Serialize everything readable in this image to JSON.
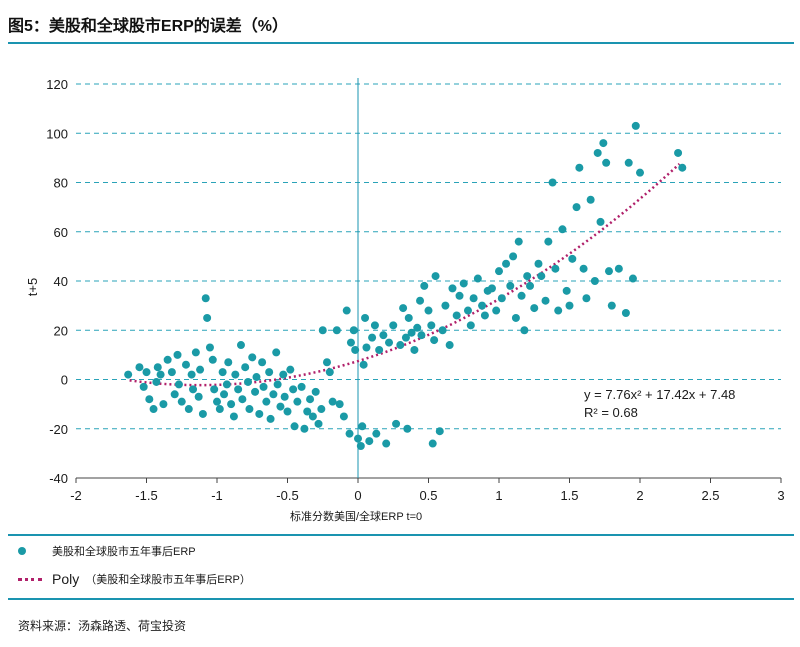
{
  "title": "图5：美股和全球股市ERP的误差（%）",
  "colors": {
    "accent": "#1a94b0",
    "points": "#1a9aa6",
    "trend": "#b0206a",
    "grid": "#2aa3b8"
  },
  "legend": {
    "scatter_label": "美股和全球股市五年事后ERP",
    "poly_prefix": "Poly",
    "poly_label": "（美股和全球股市五年事后ERP）"
  },
  "source": "资料来源：汤森路透、荷宝投资",
  "chart_data": {
    "type": "scatter",
    "xlabel": "标准分数美国/全球ERP t=0",
    "ylabel": "t+5",
    "xlim": [
      -2,
      3
    ],
    "ylim": [
      -40,
      120
    ],
    "xticks": [
      "-2",
      "-1.5",
      "-1",
      "-0.5",
      "0",
      "0.5",
      "1",
      "1.5",
      "2",
      "2.5",
      "3"
    ],
    "yticks": [
      "-40",
      "-20",
      "0",
      "20",
      "40",
      "60",
      "80",
      "100",
      "120"
    ],
    "equation": "y = 7.76x² + 17.42x + 7.48",
    "r_squared": "R² = 0.68",
    "trendline": {
      "a": 7.76,
      "b": 17.42,
      "c": 7.48,
      "xmin": -1.62,
      "xmax": 2.28
    },
    "points": [
      [
        -1.63,
        2
      ],
      [
        -1.55,
        5
      ],
      [
        -1.52,
        -3
      ],
      [
        -1.5,
        3
      ],
      [
        -1.48,
        -8
      ],
      [
        -1.45,
        -12
      ],
      [
        -1.43,
        -1
      ],
      [
        -1.42,
        5
      ],
      [
        -1.4,
        2
      ],
      [
        -1.38,
        -10
      ],
      [
        -1.35,
        8
      ],
      [
        -1.32,
        3
      ],
      [
        -1.3,
        -6
      ],
      [
        -1.28,
        10
      ],
      [
        -1.27,
        -2
      ],
      [
        -1.25,
        -9
      ],
      [
        -1.22,
        6
      ],
      [
        -1.2,
        -12
      ],
      [
        -1.18,
        2
      ],
      [
        -1.17,
        -4
      ],
      [
        -1.15,
        11
      ],
      [
        -1.13,
        -7
      ],
      [
        -1.12,
        4
      ],
      [
        -1.1,
        -14
      ],
      [
        -1.08,
        33
      ],
      [
        -1.07,
        25
      ],
      [
        -1.05,
        13
      ],
      [
        -1.03,
        8
      ],
      [
        -1.02,
        -4
      ],
      [
        -1.0,
        -9
      ],
      [
        -0.98,
        -12
      ],
      [
        -0.96,
        3
      ],
      [
        -0.95,
        -6
      ],
      [
        -0.93,
        -2
      ],
      [
        -0.92,
        7
      ],
      [
        -0.9,
        -10
      ],
      [
        -0.88,
        -15
      ],
      [
        -0.87,
        2
      ],
      [
        -0.85,
        -4
      ],
      [
        -0.83,
        14
      ],
      [
        -0.82,
        -8
      ],
      [
        -0.8,
        5
      ],
      [
        -0.78,
        -1
      ],
      [
        -0.77,
        -12
      ],
      [
        -0.75,
        9
      ],
      [
        -0.73,
        -5
      ],
      [
        -0.72,
        1
      ],
      [
        -0.7,
        -14
      ],
      [
        -0.68,
        7
      ],
      [
        -0.67,
        -3
      ],
      [
        -0.65,
        -9
      ],
      [
        -0.63,
        3
      ],
      [
        -0.62,
        -16
      ],
      [
        -0.6,
        -6
      ],
      [
        -0.58,
        11
      ],
      [
        -0.57,
        -2
      ],
      [
        -0.55,
        -11
      ],
      [
        -0.53,
        2
      ],
      [
        -0.52,
        -7
      ],
      [
        -0.5,
        -13
      ],
      [
        -0.48,
        4
      ],
      [
        -0.46,
        -4
      ],
      [
        -0.45,
        -19
      ],
      [
        -0.43,
        -9
      ],
      [
        -0.4,
        -3
      ],
      [
        -0.38,
        -20
      ],
      [
        -0.36,
        -13
      ],
      [
        -0.34,
        -8
      ],
      [
        -0.32,
        -15
      ],
      [
        -0.3,
        -5
      ],
      [
        -0.28,
        -18
      ],
      [
        -0.26,
        -12
      ],
      [
        -0.25,
        20
      ],
      [
        -0.22,
        7
      ],
      [
        -0.2,
        3
      ],
      [
        -0.18,
        -9
      ],
      [
        -0.15,
        20
      ],
      [
        -0.13,
        -10
      ],
      [
        -0.1,
        -15
      ],
      [
        -0.08,
        28
      ],
      [
        -0.06,
        -22
      ],
      [
        -0.05,
        15
      ],
      [
        -0.03,
        20
      ],
      [
        -0.02,
        12
      ],
      [
        0.0,
        -24
      ],
      [
        0.02,
        -27
      ],
      [
        0.03,
        -19
      ],
      [
        0.04,
        6
      ],
      [
        0.05,
        25
      ],
      [
        0.06,
        13
      ],
      [
        0.08,
        -25
      ],
      [
        0.1,
        17
      ],
      [
        0.12,
        22
      ],
      [
        0.13,
        -22
      ],
      [
        0.15,
        12
      ],
      [
        0.18,
        18
      ],
      [
        0.2,
        -26
      ],
      [
        0.22,
        15
      ],
      [
        0.25,
        22
      ],
      [
        0.27,
        -18
      ],
      [
        0.3,
        14
      ],
      [
        0.32,
        29
      ],
      [
        0.34,
        17
      ],
      [
        0.35,
        -20
      ],
      [
        0.36,
        25
      ],
      [
        0.38,
        19
      ],
      [
        0.4,
        12
      ],
      [
        0.42,
        21
      ],
      [
        0.44,
        32
      ],
      [
        0.45,
        18
      ],
      [
        0.47,
        38
      ],
      [
        0.5,
        28
      ],
      [
        0.52,
        22
      ],
      [
        0.53,
        -26
      ],
      [
        0.54,
        16
      ],
      [
        0.55,
        42
      ],
      [
        0.58,
        -21
      ],
      [
        0.6,
        20
      ],
      [
        0.62,
        30
      ],
      [
        0.65,
        14
      ],
      [
        0.67,
        37
      ],
      [
        0.7,
        26
      ],
      [
        0.72,
        34
      ],
      [
        0.75,
        39
      ],
      [
        0.78,
        28
      ],
      [
        0.8,
        22
      ],
      [
        0.82,
        33
      ],
      [
        0.85,
        41
      ],
      [
        0.88,
        30
      ],
      [
        0.9,
        26
      ],
      [
        0.92,
        36
      ],
      [
        0.95,
        37
      ],
      [
        0.98,
        28
      ],
      [
        1.0,
        44
      ],
      [
        1.02,
        33
      ],
      [
        1.05,
        47
      ],
      [
        1.08,
        38
      ],
      [
        1.1,
        50
      ],
      [
        1.12,
        25
      ],
      [
        1.14,
        56
      ],
      [
        1.16,
        34
      ],
      [
        1.18,
        20
      ],
      [
        1.2,
        42
      ],
      [
        1.22,
        38
      ],
      [
        1.25,
        29
      ],
      [
        1.28,
        47
      ],
      [
        1.3,
        42
      ],
      [
        1.33,
        32
      ],
      [
        1.35,
        56
      ],
      [
        1.38,
        80
      ],
      [
        1.4,
        45
      ],
      [
        1.42,
        28
      ],
      [
        1.45,
        61
      ],
      [
        1.48,
        36
      ],
      [
        1.5,
        30
      ],
      [
        1.52,
        49
      ],
      [
        1.55,
        70
      ],
      [
        1.57,
        86
      ],
      [
        1.6,
        45
      ],
      [
        1.62,
        33
      ],
      [
        1.65,
        73
      ],
      [
        1.68,
        40
      ],
      [
        1.7,
        92
      ],
      [
        1.72,
        64
      ],
      [
        1.74,
        96
      ],
      [
        1.76,
        88
      ],
      [
        1.78,
        44
      ],
      [
        1.8,
        30
      ],
      [
        1.85,
        45
      ],
      [
        1.9,
        27
      ],
      [
        1.92,
        88
      ],
      [
        1.95,
        41
      ],
      [
        1.97,
        103
      ],
      [
        2.0,
        84
      ],
      [
        2.27,
        92
      ],
      [
        2.3,
        86
      ]
    ]
  }
}
